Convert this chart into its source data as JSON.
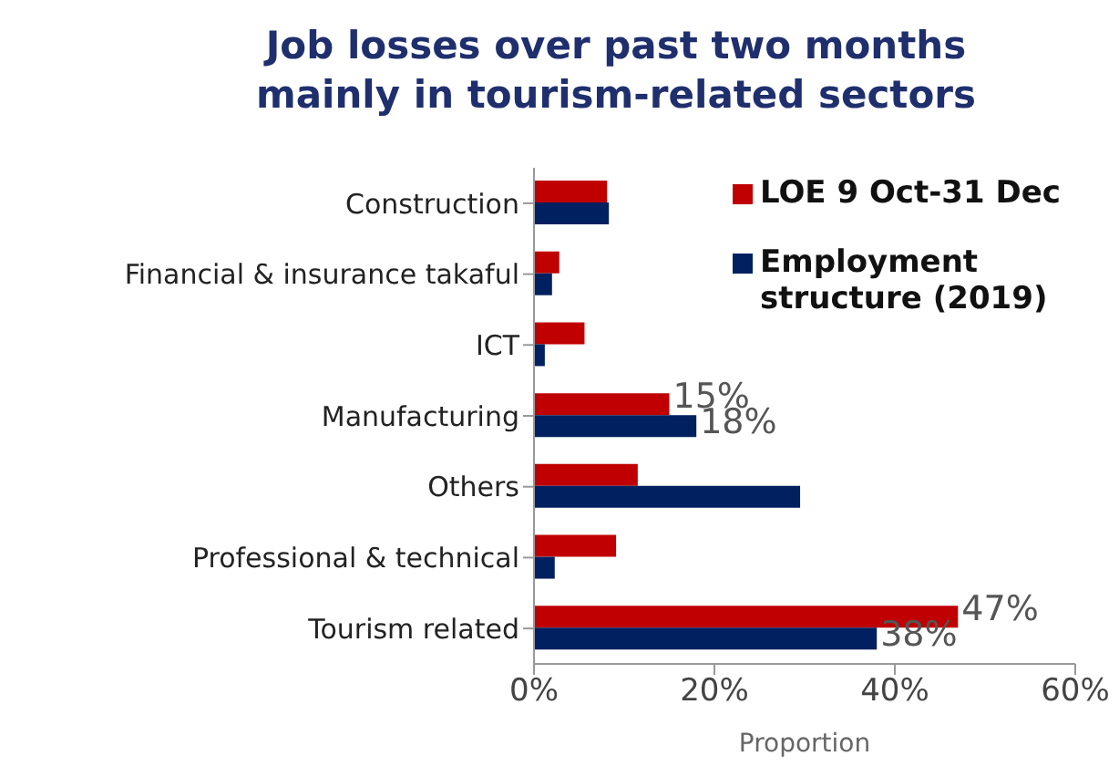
{
  "chart_data": {
    "type": "bar",
    "orientation": "horizontal",
    "title": "Job losses over past two months mainly in tourism-related sectors",
    "xlabel": "Proportion",
    "categories": [
      "Construction",
      "Financial & insurance takaful",
      "ICT",
      "Manufacturing",
      "Others",
      "Professional & technical",
      "Tourism related"
    ],
    "series": [
      {
        "name": "LOE 9 Oct-31 Dec",
        "color": "#c00000",
        "values": [
          8.1,
          2.8,
          5.6,
          15,
          11.5,
          9.1,
          47
        ],
        "value_labels": [
          null,
          null,
          null,
          "15%",
          null,
          null,
          "47%"
        ]
      },
      {
        "name": "Employment structure (2019)",
        "color": "#002060",
        "values": [
          8.3,
          2.0,
          1.2,
          18,
          29.5,
          2.3,
          38
        ],
        "value_labels": [
          null,
          null,
          null,
          "18%",
          null,
          null,
          "38%"
        ]
      }
    ],
    "xlim": [
      0,
      60
    ],
    "xticks": [
      {
        "value": 0,
        "label": "0%"
      },
      {
        "value": 20,
        "label": "20%"
      },
      {
        "value": 40,
        "label": "40%"
      },
      {
        "value": 60,
        "label": "60%"
      }
    ],
    "legend": "top right"
  }
}
